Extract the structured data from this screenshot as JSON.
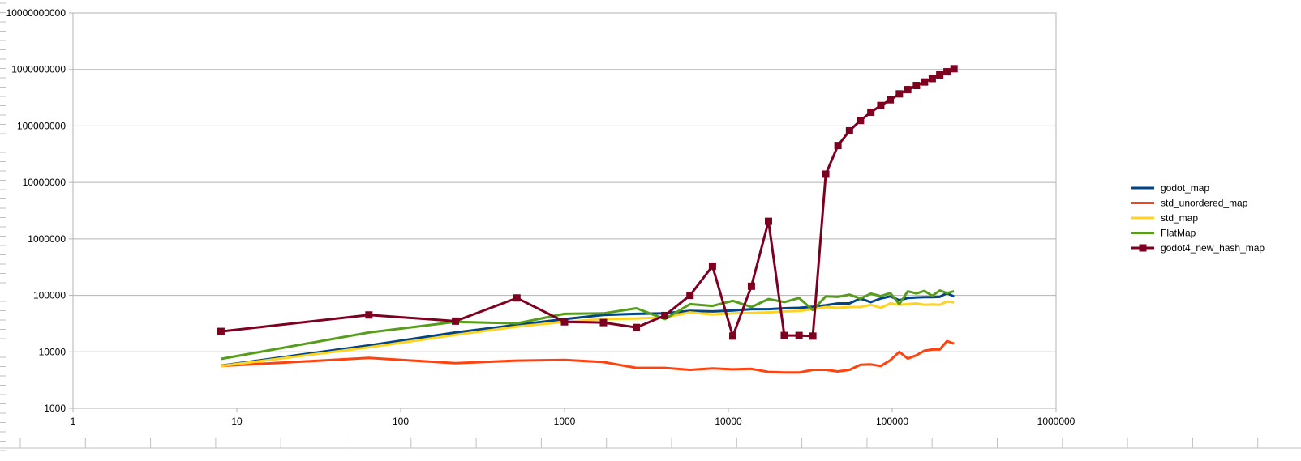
{
  "chart_data": {
    "type": "line",
    "xscale": "log",
    "yscale": "log",
    "xlim": [
      1,
      1000000
    ],
    "ylim": [
      1000,
      10000000000
    ],
    "grid": "horizontal major gridlines on",
    "legend_position": "right",
    "x_tick_labels": [
      "1",
      "10",
      "100",
      "1000",
      "10000",
      "100000",
      "1000000"
    ],
    "y_tick_labels": [
      "1000",
      "10000",
      "100000",
      "1000000",
      "10000000",
      "100000000",
      "1000000000",
      "10000000000"
    ],
    "series": [
      {
        "name": "godot_map",
        "color": "#004586",
        "marker": "none",
        "x": [
          8,
          64,
          216,
          512,
          1000,
          1728,
          2744,
          4096,
          5832,
          8000,
          10648,
          13824,
          17576,
          21952,
          27000,
          32768,
          39304,
          46656,
          54872,
          64000,
          74088,
          85184,
          97336,
          110592,
          124416,
          140608,
          157464,
          175616,
          195112,
          216000,
          238328
        ],
        "y": [
          5700,
          13000,
          22000,
          30000,
          38000,
          45000,
          47000,
          48000,
          53000,
          52000,
          54000,
          57000,
          57000,
          59000,
          60000,
          63000,
          67000,
          72000,
          72000,
          88000,
          76000,
          88000,
          96000,
          82000,
          90000,
          92000,
          93000,
          93000,
          94000,
          110000,
          95000
        ]
      },
      {
        "name": "std_unordered_map",
        "color": "#ff420e",
        "marker": "none",
        "x": [
          8,
          64,
          216,
          512,
          1000,
          1728,
          2744,
          4096,
          5832,
          8000,
          10648,
          13824,
          17576,
          21952,
          27000,
          32768,
          39304,
          46656,
          54872,
          64000,
          74088,
          85184,
          97336,
          110592,
          124416,
          140608,
          157464,
          175616,
          195112,
          216000,
          238328
        ],
        "y": [
          5600,
          7800,
          6300,
          7000,
          7200,
          6600,
          5200,
          5200,
          4800,
          5100,
          4900,
          5000,
          4400,
          4300,
          4300,
          4800,
          4800,
          4500,
          4800,
          5900,
          6000,
          5600,
          7100,
          10000,
          7600,
          8700,
          10500,
          11000,
          11000,
          15500,
          14000
        ]
      },
      {
        "name": "std_map",
        "color": "#ffd320",
        "marker": "none",
        "x": [
          8,
          64,
          216,
          512,
          1000,
          1728,
          2744,
          4096,
          5832,
          8000,
          10648,
          13824,
          17576,
          21952,
          27000,
          32768,
          39304,
          46656,
          54872,
          64000,
          74088,
          85184,
          97336,
          110592,
          124416,
          140608,
          157464,
          175616,
          195112,
          216000,
          238328
        ],
        "y": [
          5600,
          12000,
          20000,
          28000,
          34000,
          38000,
          39000,
          41000,
          50000,
          46000,
          48000,
          49000,
          50000,
          52000,
          53000,
          57000,
          62000,
          60000,
          62000,
          62000,
          68000,
          60000,
          72000,
          68000,
          70000,
          72000,
          68000,
          69000,
          68000,
          78000,
          75000
        ]
      },
      {
        "name": "FlatMap",
        "color": "#579d1c",
        "marker": "none",
        "x": [
          8,
          64,
          216,
          512,
          1000,
          1728,
          2744,
          4096,
          5832,
          8000,
          10648,
          13824,
          17576,
          21952,
          27000,
          32768,
          39304,
          46656,
          54872,
          64000,
          74088,
          85184,
          97336,
          110592,
          124416,
          140608,
          157464,
          175616,
          195112,
          216000,
          238328
        ],
        "y": [
          7500,
          22000,
          34000,
          32000,
          47000,
          48000,
          59000,
          38000,
          70000,
          65000,
          80000,
          62000,
          86000,
          76000,
          90000,
          55000,
          96000,
          94000,
          103000,
          88000,
          107000,
          97000,
          110000,
          70000,
          118000,
          108000,
          120000,
          98000,
          122000,
          110000,
          118000
        ]
      },
      {
        "name": "godot4_new_hash_map",
        "color": "#7e0021",
        "marker": "square",
        "x": [
          8,
          64,
          216,
          512,
          1000,
          1728,
          2744,
          4096,
          5832,
          8000,
          10648,
          13824,
          17576,
          21952,
          27000,
          32768,
          39304,
          46656,
          54872,
          64000,
          74088,
          85184,
          97336,
          110592,
          124416,
          140608,
          157464,
          175616,
          195112,
          216000,
          238328
        ],
        "y": [
          23000,
          45000,
          35000,
          90000,
          34000,
          33000,
          27000,
          44000,
          100000,
          330000,
          19000,
          145000,
          2050000,
          19500,
          19500,
          19000,
          14000000,
          45000000,
          82000000,
          125000000,
          175000000,
          230000000,
          290000000,
          370000000,
          440000000,
          520000000,
          600000000,
          690000000,
          800000000,
          910000000,
          1030000000
        ]
      }
    ]
  }
}
